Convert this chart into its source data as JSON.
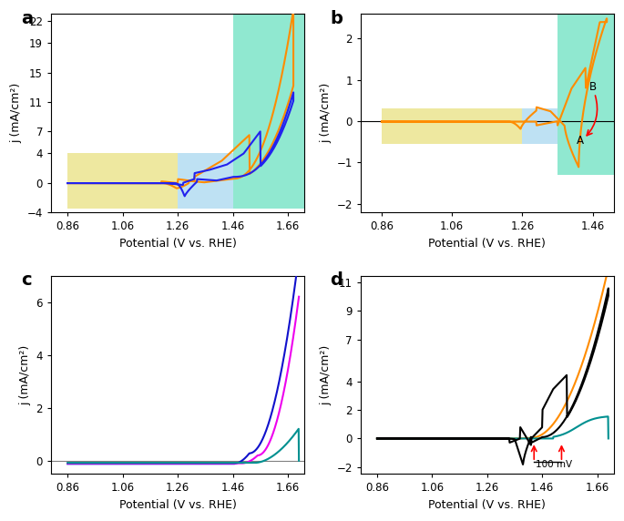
{
  "fig_width": 6.85,
  "fig_height": 5.72,
  "bg_color": "#ffffff",
  "panel_labels": [
    "a",
    "b",
    "c",
    "d"
  ],
  "panel_label_fontsize": 14,
  "axis_label_fontsize": 9,
  "tick_fontsize": 8.5,
  "xlabel": "Potential (V vs. RHE)",
  "ylabel": "j (mA/cm²)",
  "colors": {
    "orange": "#FF8C00",
    "red_orange": "#FF3300",
    "blue": "#2222EE",
    "magenta": "#EE00EE",
    "teal": "#009090",
    "dark_blue": "#1111CC",
    "cyan_bg": "#90E8D0",
    "lightblue_bg": "#A8D8F0",
    "yellow_bg": "#EEE8A0"
  }
}
